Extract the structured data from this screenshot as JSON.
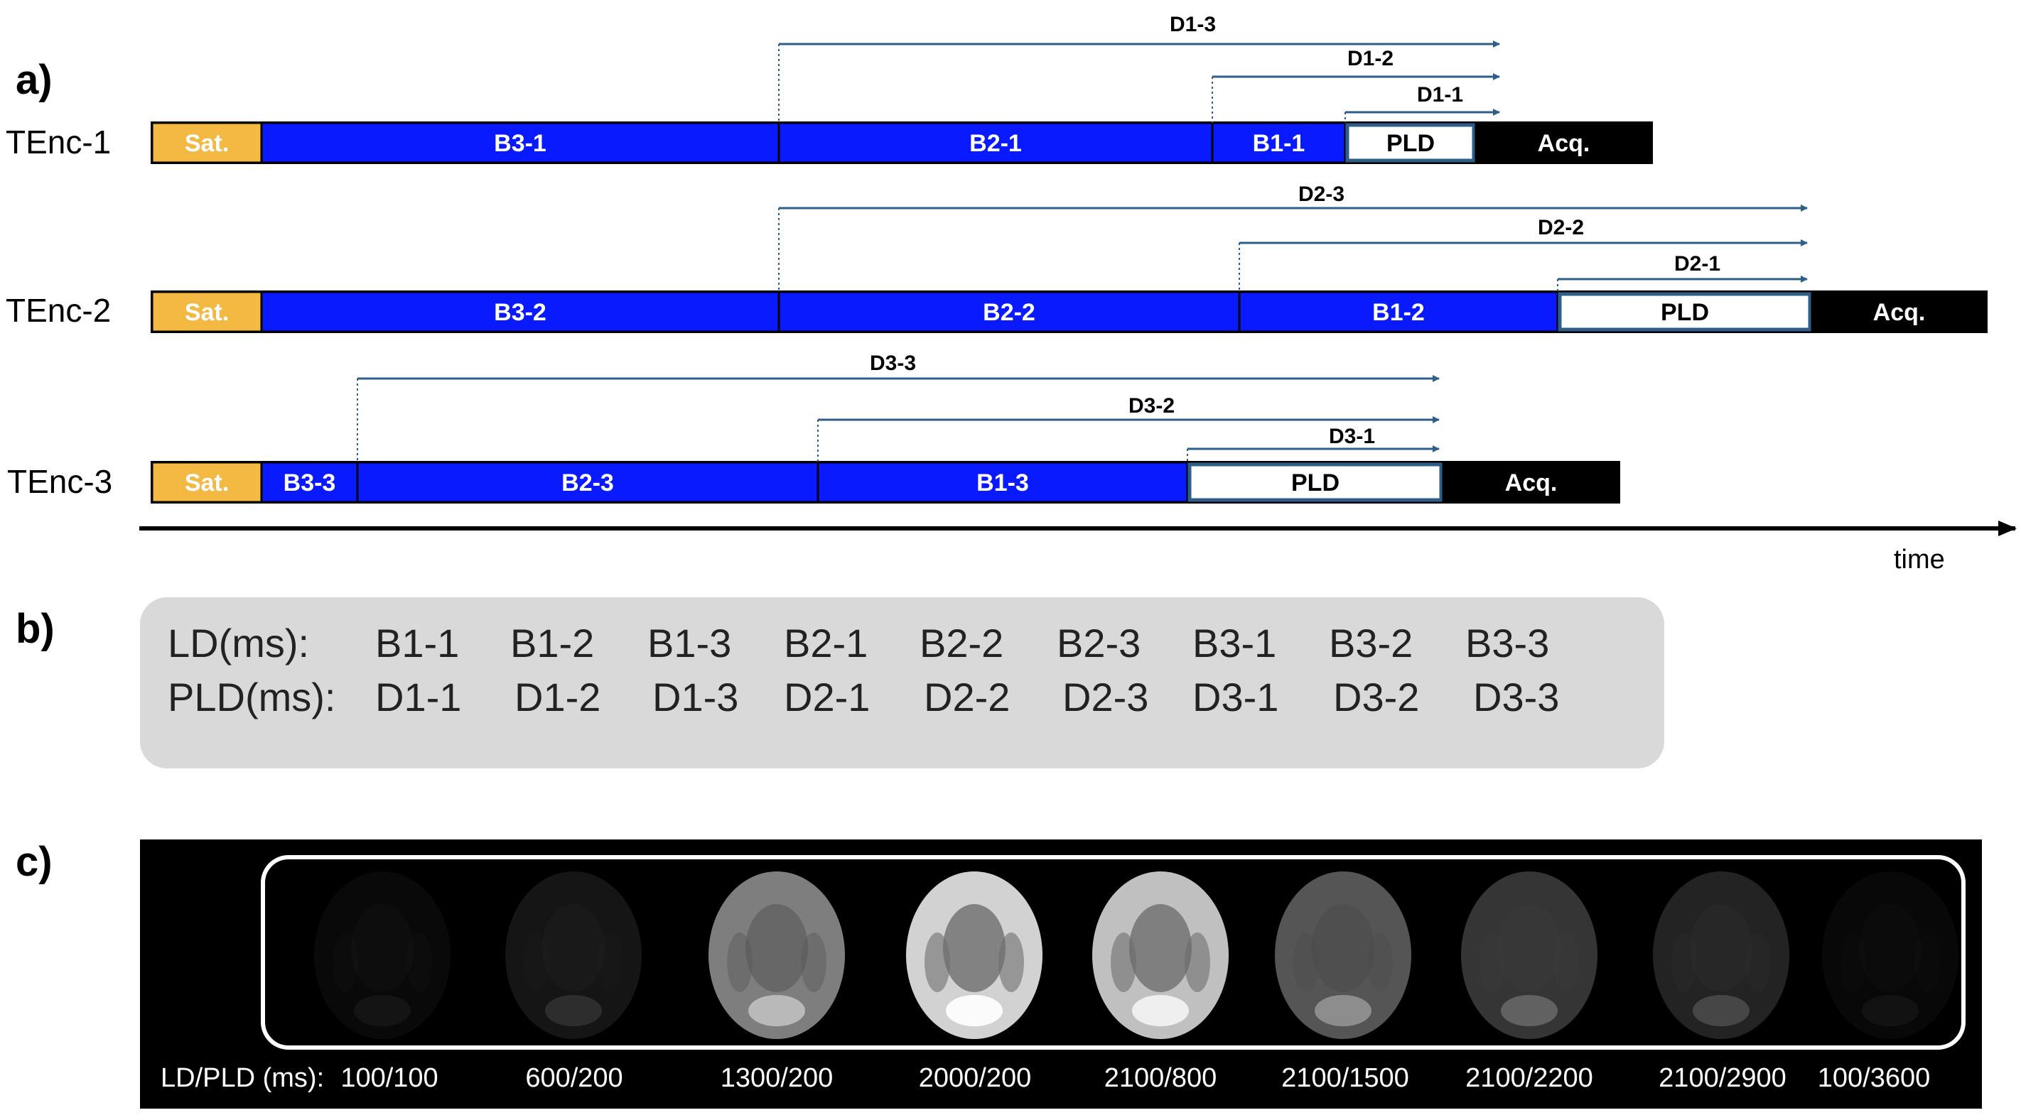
{
  "colors": {
    "sat": "#f4b942",
    "bolus": "#0a1aff",
    "acq": "#000000",
    "pld_border": "#2e5f8a",
    "arrow": "#2e5f8a",
    "table_bg": "#d9d9d9",
    "image_bg": "#000000"
  },
  "panel_a": {
    "label": "a)",
    "time_label": "time",
    "rows": [
      {
        "label": "TEnc-1",
        "segments": [
          {
            "kind": "sat",
            "label": "Sat."
          },
          {
            "kind": "bolus",
            "label": "B3-1"
          },
          {
            "kind": "bolus",
            "label": "B2-1"
          },
          {
            "kind": "bolus",
            "label": "B1-1"
          },
          {
            "kind": "pld",
            "label": "PLD"
          },
          {
            "kind": "acq",
            "label": "Acq."
          }
        ],
        "delays": [
          "D1-3",
          "D1-2",
          "D1-1"
        ]
      },
      {
        "label": "TEnc-2",
        "segments": [
          {
            "kind": "sat",
            "label": "Sat."
          },
          {
            "kind": "bolus",
            "label": "B3-2"
          },
          {
            "kind": "bolus",
            "label": "B2-2"
          },
          {
            "kind": "bolus",
            "label": "B1-2"
          },
          {
            "kind": "pld",
            "label": "PLD"
          },
          {
            "kind": "acq",
            "label": "Acq."
          }
        ],
        "delays": [
          "D2-3",
          "D2-2",
          "D2-1"
        ]
      },
      {
        "label": "TEnc-3",
        "segments": [
          {
            "kind": "sat",
            "label": "Sat."
          },
          {
            "kind": "bolus",
            "label": "B3-3"
          },
          {
            "kind": "bolus",
            "label": "B2-3"
          },
          {
            "kind": "bolus",
            "label": "B1-3"
          },
          {
            "kind": "pld",
            "label": "PLD"
          },
          {
            "kind": "acq",
            "label": "Acq."
          }
        ],
        "delays": [
          "D3-3",
          "D3-2",
          "D3-1"
        ]
      }
    ]
  },
  "panel_b": {
    "label": "b)",
    "ld_header": "LD(ms):",
    "pld_header": "PLD(ms):",
    "ld_values": [
      "B1-1",
      "B1-2",
      "B1-3",
      "B2-1",
      "B2-2",
      "B2-3",
      "B3-1",
      "B3-2",
      "B3-3"
    ],
    "pld_values": [
      "D1-1",
      "D1-2",
      "D1-3",
      "D2-1",
      "D2-2",
      "D2-3",
      "D3-1",
      "D3-2",
      "D3-3"
    ]
  },
  "panel_c": {
    "label": "c)",
    "caption_prefix": "LD/PLD (ms):",
    "images": [
      {
        "ld_pld": "100/100",
        "intensity": 0.12
      },
      {
        "ld_pld": "600/200",
        "intensity": 0.25
      },
      {
        "ld_pld": "1300/200",
        "intensity": 0.75
      },
      {
        "ld_pld": "2000/200",
        "intensity": 1.0
      },
      {
        "ld_pld": "2100/800",
        "intensity": 0.95
      },
      {
        "ld_pld": "2100/1500",
        "intensity": 0.6
      },
      {
        "ld_pld": "2100/2200",
        "intensity": 0.45
      },
      {
        "ld_pld": "2100/2900",
        "intensity": 0.35
      },
      {
        "ld_pld": "100/3600",
        "intensity": 0.08
      }
    ]
  }
}
